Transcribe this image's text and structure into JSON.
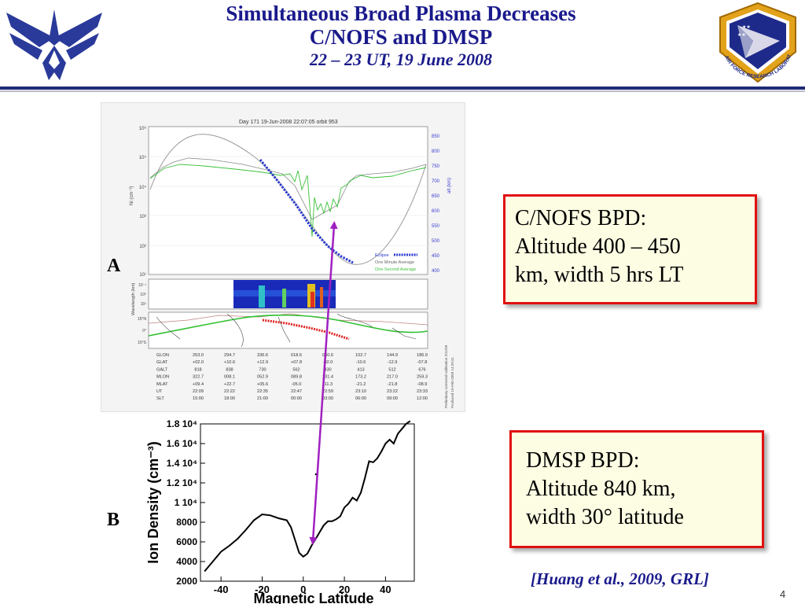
{
  "slide": {
    "title_line1": "Simultaneous Broad Plasma Decreases",
    "title_line2": "C/NOFS and DMSP",
    "title_line3": "22 – 23 UT, 19 June 2008",
    "page_number": "4",
    "citation": "[Huang et al., 2009, GRL]",
    "colors": {
      "title": "#1a1a8c",
      "box_border": "#e01010",
      "box_fill": "#fdfde3",
      "arrow": "#a020c0"
    }
  },
  "logos": {
    "left_icon": "air-force-wings-icon",
    "right_icon": "afrl-seal-icon",
    "right_text": "AIR FORCE RESEARCH LABORATORY"
  },
  "callouts": {
    "cnofs": {
      "line1": "C/NOFS BPD:",
      "line2": "Altitude 400 – 450",
      "line3": "km, width 5 hrs LT"
    },
    "dmsp": {
      "line1": "DMSP BPD:",
      "line2": "Altitude 840 km,",
      "line3": "width 30° latitude"
    }
  },
  "panel_a": {
    "label": "A",
    "header": "Day 171   19-Jun-2008 22:07:05   orbit 953",
    "y_left_label": "Ni (cm⁻³)",
    "y_left_ticks": [
      "10⁶",
      "10⁵",
      "10⁴",
      "10³",
      "10²",
      "10¹"
    ],
    "y_right_label": "alt (km)",
    "y_right_ticks": [
      "850",
      "800",
      "750",
      "700",
      "650",
      "600",
      "550",
      "500",
      "450",
      "400"
    ],
    "legend": [
      "Eclipse",
      "One Minute Average",
      "One Second Average"
    ],
    "spectro_label": "Wavelength (km)",
    "spectro_ticks": [
      "10⁻¹",
      "10⁰",
      "10¹"
    ],
    "map_ticks": [
      "15°N",
      "0°",
      "15°S"
    ],
    "table": {
      "rows": [
        {
          "label": "GLON",
          "values": [
            "253.0",
            "294.7",
            "336.6",
            "018.6",
            "060.6",
            "102.7",
            "144.9",
            "186.9"
          ]
        },
        {
          "label": "GLAT",
          "values": [
            "+02.0",
            "+10.6",
            "+12.9",
            "+07.8",
            "-02.0",
            "-10.6",
            "-12.9",
            "-07.8"
          ]
        },
        {
          "label": "GALT",
          "values": [
            "818",
            "838",
            "730",
            "562",
            "430",
            "413",
            "512",
            "676"
          ]
        },
        {
          "label": "MLON",
          "values": [
            "322.7",
            "008.1",
            "052.9",
            "089.8",
            "131.4",
            "173.2",
            "217.0",
            "259.3"
          ]
        },
        {
          "label": "MLAT",
          "values": [
            "+09.4",
            "+22.7",
            "+05.6",
            "-05.0",
            "-11.3",
            "-21.2",
            "-21.8",
            "-08.9"
          ]
        },
        {
          "label": "UT",
          "values": [
            "22:09",
            "22:22",
            "22:35",
            "22:47",
            "22:59",
            "23:10",
            "23:22",
            "23:33"
          ]
        },
        {
          "label": "SLT",
          "values": [
            "15:00",
            "18:00",
            "21:00",
            "00:00",
            "03:00",
            "06:00",
            "09:00",
            "12:00"
          ]
        }
      ],
      "side_note_1": "Preliminary corrected calibration 2/11/09",
      "side_note_2": "Produced 19-Feb-2009 14:29:41"
    }
  },
  "panel_b": {
    "label": "B",
    "y_label": "Ion Density (cm⁻³)",
    "x_label": "Magnetic Latitude",
    "y_ticks": [
      "1.8 10⁴",
      "1.6 10⁴",
      "1.4 10⁴",
      "1.2 10⁴",
      "1 10⁴",
      "8000",
      "6000",
      "4000",
      "2000"
    ],
    "x_ticks": [
      "-40",
      "-20",
      "0",
      "20",
      "40"
    ]
  },
  "chart_data": {
    "type": "line",
    "x": [
      -48,
      -44,
      -40,
      -36,
      -32,
      -28,
      -24,
      -20,
      -16,
      -12,
      -8,
      -6,
      -4,
      -2,
      0,
      2,
      4,
      6,
      8,
      10,
      12,
      14,
      16,
      18,
      20,
      22,
      24,
      26,
      28,
      30,
      32,
      34,
      36,
      38,
      40,
      42,
      44,
      46,
      48,
      50,
      52
    ],
    "values": [
      3000,
      4000,
      5000,
      5600,
      6300,
      7200,
      8200,
      8800,
      8700,
      8400,
      8200,
      7500,
      6200,
      4900,
      4500,
      4800,
      5600,
      6300,
      7000,
      7700,
      8100,
      8100,
      8300,
      8600,
      9500,
      9900,
      10500,
      10200,
      11000,
      12500,
      14200,
      14100,
      14500,
      15200,
      16000,
      16400,
      16000,
      17000,
      17500,
      18000,
      18300
    ],
    "xlabel": "Magnetic Latitude",
    "ylabel": "Ion Density (cm⁻³)",
    "xlim": [
      -50,
      54
    ],
    "ylim": [
      2000,
      18000
    ],
    "grid": false
  }
}
